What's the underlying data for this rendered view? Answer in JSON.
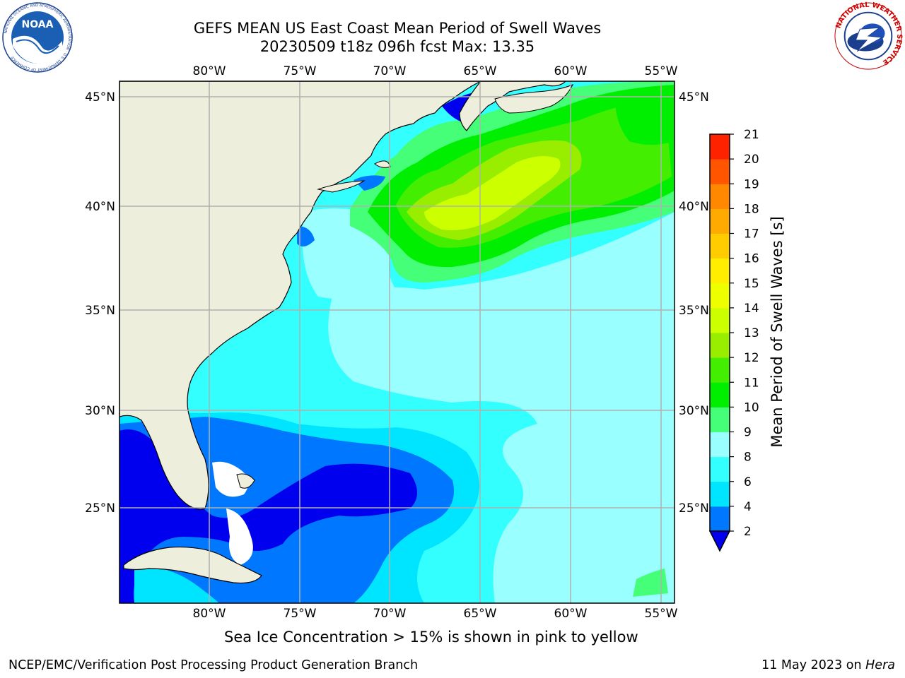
{
  "title": {
    "line1": "GEFS MEAN US East Coast Mean Period of Swell Waves",
    "line2": "20230509 t18z 096h fcst   Max: 13.35"
  },
  "logos": {
    "left": {
      "name": "noaa-logo",
      "text": "NOAA",
      "ring_text": "NATIONAL OCEANIC AND ATMOSPHERIC ADMINISTRATION · U.S. DEPARTMENT OF COMMERCE"
    },
    "right": {
      "name": "nws-logo",
      "ring_text": "NATIONAL WEATHER SERVICE"
    }
  },
  "map": {
    "lon_ticks": [
      "80°W",
      "75°W",
      "70°W",
      "65°W",
      "60°W",
      "55°W"
    ],
    "lat_ticks": [
      "45°N",
      "40°N",
      "35°N",
      "30°N",
      "25°N"
    ],
    "lon_values": [
      -80,
      -75,
      -70,
      -65,
      -60,
      -55
    ],
    "lat_values": [
      45,
      40,
      35,
      30,
      25
    ],
    "lon_range": [
      -85,
      -54.5
    ],
    "lat_range": [
      20.5,
      46
    ],
    "land_color": "#eeeedd",
    "grid_color": "#b0b0b0"
  },
  "colorbar": {
    "title": "Mean Period of Swell Waves [s]",
    "levels": [
      "2",
      "4",
      "6",
      "8",
      "9",
      "10",
      "11",
      "12",
      "13",
      "14",
      "15",
      "16",
      "17",
      "18",
      "19",
      "20",
      "21"
    ],
    "colors": [
      "#0077ff",
      "#00e5ff",
      "#33ffff",
      "#99ffff",
      "#44ff77",
      "#00ee00",
      "#44ee00",
      "#99ee00",
      "#ccff00",
      "#eeff00",
      "#ffee00",
      "#ffcc00",
      "#ffaa00",
      "#ff8800",
      "#ff5500",
      "#ff2200"
    ],
    "extend_min_color": "#0000ee",
    "extend": "min"
  },
  "footer": {
    "note": "Sea Ice Concentration > 15% is shown in pink to yellow",
    "left": "NCEP/EMC/Verification Post Processing Product Generation Branch",
    "right_date": "11 May 2023 on ",
    "right_machine": "Hera"
  }
}
